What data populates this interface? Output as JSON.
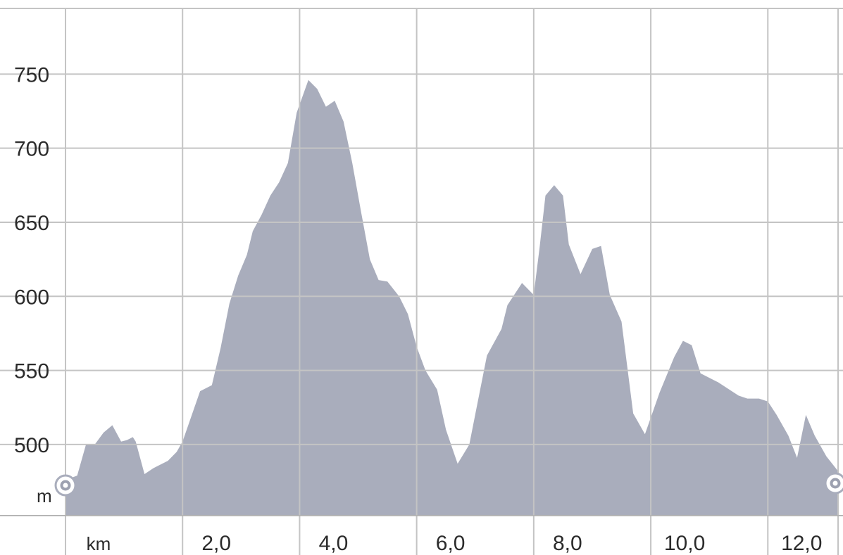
{
  "chart_data": {
    "type": "area",
    "title": "",
    "xlabel": "km",
    "ylabel": "m",
    "x_unit": "km",
    "y_unit": "m",
    "xlim": [
      0,
      13.2
    ],
    "ylim": [
      452,
      800
    ],
    "grid": true,
    "legend": "none",
    "fill_color": "#a9adbc",
    "grid_color": "#c4c4c4",
    "x_ticks": [
      {
        "value": 2,
        "label": "2,0"
      },
      {
        "value": 4,
        "label": "4,0"
      },
      {
        "value": 6,
        "label": "6,0"
      },
      {
        "value": 8,
        "label": "8,0"
      },
      {
        "value": 10,
        "label": "10,0"
      },
      {
        "value": 12,
        "label": "12,0"
      }
    ],
    "y_ticks": [
      {
        "value": 500,
        "label": "500"
      },
      {
        "value": 550,
        "label": "550"
      },
      {
        "value": 600,
        "label": "600"
      },
      {
        "value": 650,
        "label": "650"
      },
      {
        "value": 700,
        "label": "700"
      },
      {
        "value": 750,
        "label": "750"
      }
    ],
    "x_grid_values": [
      0,
      2,
      4,
      6,
      8,
      10,
      12
    ],
    "series": [
      {
        "x": [
          0.0,
          0.2,
          0.35,
          0.5,
          0.65,
          0.8,
          0.95,
          1.05,
          1.15,
          1.2,
          1.35,
          1.5,
          1.6,
          1.75,
          1.9,
          2.0,
          2.3,
          2.5,
          2.65,
          2.8,
          2.95,
          3.1,
          3.2,
          3.35,
          3.5,
          3.65,
          3.8,
          3.95,
          4.15,
          4.3,
          4.45,
          4.6,
          4.75,
          4.9,
          5.05,
          5.2,
          5.35,
          5.5,
          5.7,
          5.85,
          6.0,
          6.15,
          6.35,
          6.5,
          6.7,
          6.9,
          7.0,
          7.2,
          7.45,
          7.55,
          7.8,
          8.0,
          8.1,
          8.2,
          8.35,
          8.5,
          8.6,
          8.8,
          9.0,
          9.15,
          9.3,
          9.5,
          9.7,
          9.9,
          10.15,
          10.4,
          10.55,
          10.7,
          10.85,
          11.15,
          11.5,
          11.65,
          11.85,
          12.0,
          12.15,
          12.35,
          12.5,
          12.65,
          12.8,
          13.0,
          13.2
        ],
        "values": [
          476,
          479,
          500,
          500,
          508,
          513,
          502,
          503,
          505,
          502,
          480,
          484,
          486,
          489,
          495,
          502,
          536,
          540,
          565,
          595,
          614,
          628,
          644,
          655,
          668,
          677,
          690,
          724,
          746,
          740,
          728,
          732,
          718,
          690,
          657,
          625,
          611,
          610,
          600,
          588,
          566,
          550,
          537,
          510,
          487,
          500,
          520,
          560,
          578,
          594,
          609,
          601,
          633,
          668,
          675,
          668,
          635,
          615,
          632,
          634,
          601,
          583,
          521,
          507,
          535,
          559,
          570,
          567,
          548,
          542,
          533,
          531,
          531,
          529,
          520,
          506,
          491,
          520,
          506,
          492,
          482
        ]
      }
    ]
  }
}
